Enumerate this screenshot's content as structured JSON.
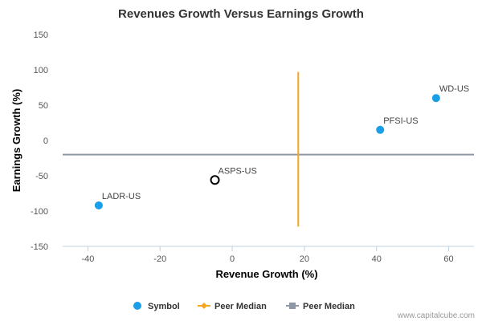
{
  "chart_data": {
    "type": "scatter",
    "title": "Revenues Growth Versus Earnings Growth",
    "xlabel": "Revenue Growth (%)",
    "ylabel": "Earnings Growth (%)",
    "xlim": [
      -47,
      67
    ],
    "ylim": [
      -150,
      150
    ],
    "x_ticks": [
      -40,
      -20,
      0,
      20,
      40,
      60
    ],
    "y_ticks": [
      150,
      100,
      50,
      0,
      -50,
      -100,
      -150
    ],
    "grid": false,
    "legend_position": "bottom",
    "points": [
      {
        "label": "WD-US",
        "x": 56.5,
        "y": 60,
        "highlight": false
      },
      {
        "label": "PFSI-US",
        "x": 41,
        "y": 15,
        "highlight": false
      },
      {
        "label": "ASPS-US",
        "x": -4.8,
        "y": -56,
        "highlight": true
      },
      {
        "label": "LADR-US",
        "x": -37,
        "y": -92,
        "highlight": false
      }
    ],
    "peer_median_revenue": 18.3,
    "peer_median_earnings": -20,
    "vline_range": [
      -122,
      97
    ],
    "legend": [
      {
        "name": "Symbol",
        "marker": "circle",
        "color": "#1a9ee6"
      },
      {
        "name": "Peer Median",
        "marker": "diamond-line",
        "color": "#f5a623"
      },
      {
        "name": "Peer Median",
        "marker": "square-line",
        "color": "#8e97a6"
      }
    ],
    "colors": {
      "point": "#1a9ee6",
      "vline": "#f5a623",
      "hline": "#8e97a6",
      "axis": "#c0d0e0"
    }
  },
  "credit": "www.capitalcube.com"
}
